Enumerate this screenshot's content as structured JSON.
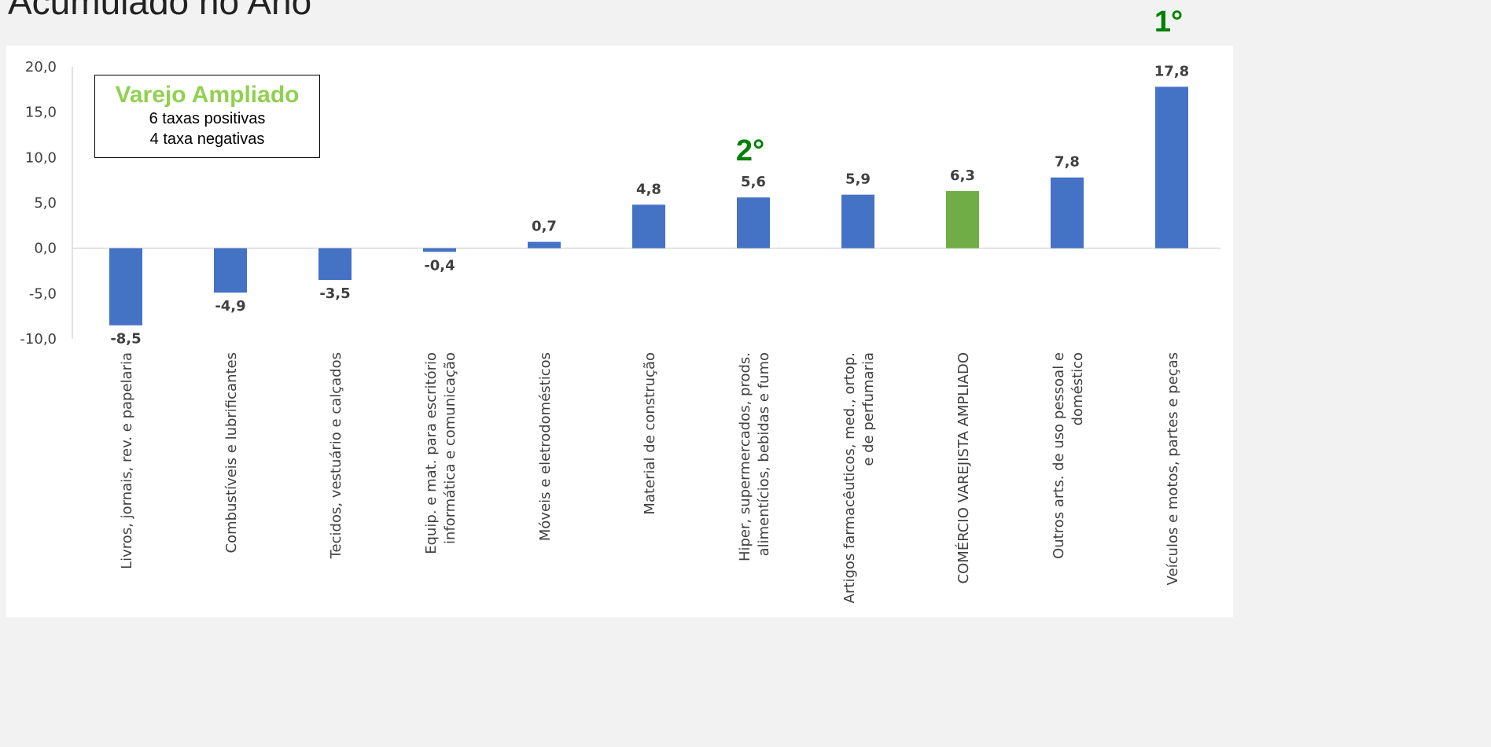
{
  "header": {
    "title": "Acumulado no Ano"
  },
  "legend_box": {
    "title": "Varejo Ampliado",
    "line1": "6 taxas positivas",
    "line2": "4 taxa negativas",
    "title_color": "#92d050"
  },
  "colors": {
    "bar": "#4472c4",
    "highlight_bar": "#70ad47",
    "rank_marker": "#008000"
  },
  "chart_data": {
    "type": "bar",
    "categories": [
      [
        "Livros, jornais, rev. e papelaria"
      ],
      [
        "Combustíveis e lubrificantes"
      ],
      [
        "Tecidos, vestuário e calçados"
      ],
      [
        "Equip. e mat. para escritório",
        "informática e comunicação"
      ],
      [
        "Móveis e eletrodomésticos"
      ],
      [
        "Material de construção"
      ],
      [
        "Hiper, supermercados, prods.",
        "alimentícios, bebidas e fumo"
      ],
      [
        "Artigos farmacêuticos, med., ortop.",
        "e de perfumaria"
      ],
      [
        "COMÉRCIO VAREJISTA AMPLIADO"
      ],
      [
        "Outros arts. de uso pessoal e",
        "doméstico"
      ],
      [
        "Veículos e motos, partes e peças"
      ]
    ],
    "values": [
      -8.5,
      -4.9,
      -3.5,
      -0.4,
      0.7,
      4.8,
      5.6,
      5.9,
      6.3,
      7.8,
      17.8
    ],
    "value_labels": [
      "-8,5",
      "-4,9",
      "-3,5",
      "-0,4",
      "0,7",
      "4,8",
      "5,6",
      "5,9",
      "6,3",
      "7,8",
      "17,8"
    ],
    "highlight_index": 8,
    "ylim": [
      -10,
      20
    ],
    "yticks": [
      20,
      15,
      10,
      5,
      0,
      -5,
      -10
    ],
    "ytick_labels": [
      "20,0",
      "15,0",
      "10,0",
      "5,0",
      "0,0",
      "-5,0",
      "-10,0"
    ],
    "grid": false,
    "annotations": [
      {
        "text": "1°",
        "category_index": 10
      },
      {
        "text": "2°",
        "category_index": 6
      }
    ]
  }
}
